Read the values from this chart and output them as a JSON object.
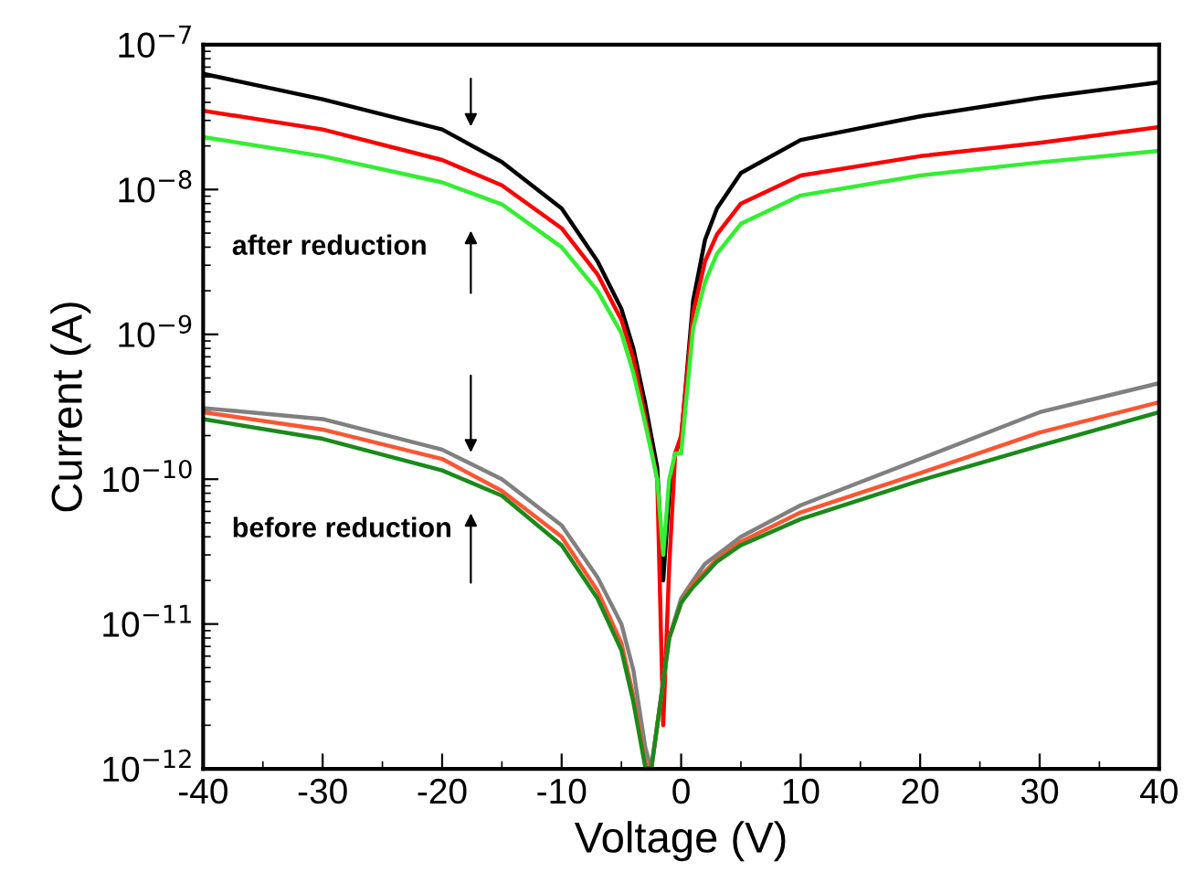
{
  "chart_data": {
    "type": "line",
    "xlabel": "Voltage (V)",
    "ylabel": "Current (A)",
    "log": "y",
    "xlim": [
      -40,
      40
    ],
    "xticks": [
      -40,
      -30,
      -20,
      -10,
      0,
      10,
      20,
      30,
      40
    ],
    "ylim": [
      1e-12,
      1e-07
    ],
    "yticks": [
      {
        "value": 1e-12,
        "label": "10$^{−12}$"
      },
      {
        "value": 1e-11,
        "label": "10$^{−11}$"
      },
      {
        "value": 1e-10,
        "label": "10$^{−10}$"
      },
      {
        "value": 1e-09,
        "label": "10$^{−9}$"
      },
      {
        "value": 1e-08,
        "label": "10$^{−8}$"
      },
      {
        "value": 1e-07,
        "label": "10$^{−7}$"
      }
    ],
    "grid": false,
    "legend": false,
    "marker": "none",
    "line_style": "solid",
    "x": [
      -40,
      -30,
      -20,
      -15,
      -10,
      -7,
      -5,
      -4,
      -3,
      -2,
      -1.5,
      -1,
      -0.5,
      0,
      1,
      2,
      3,
      5,
      10,
      20,
      30,
      40
    ],
    "series": [
      {
        "color": "#000000",
        "values": [
          6.3e-08,
          4.2e-08,
          2.6e-08,
          1.55e-08,
          7.4e-09,
          3.2e-09,
          1.5e-09,
          8e-10,
          3.3e-10,
          1.2e-10,
          2e-11,
          8e-11,
          1.5e-10,
          1.9e-10,
          1.7e-09,
          4.5e-09,
          7.4e-09,
          1.3e-08,
          2.2e-08,
          3.2e-08,
          4.3e-08,
          5.5e-08
        ]
      },
      {
        "color": "#ff0000",
        "values": [
          3.5e-08,
          2.6e-08,
          1.6e-08,
          1.07e-08,
          5.4e-09,
          2.6e-09,
          1.26e-09,
          6.8e-10,
          2.7e-10,
          1e-10,
          2e-12,
          2.5e-11,
          1.5e-10,
          2e-10,
          1.4e-09,
          3.2e-09,
          4.9e-09,
          8e-09,
          1.25e-08,
          1.7e-08,
          2.1e-08,
          2.7e-08
        ]
      },
      {
        "color": "#33ee33",
        "values": [
          2.3e-08,
          1.7e-08,
          1.12e-08,
          7.9e-09,
          4e-09,
          2e-09,
          1.02e-09,
          5.4e-10,
          2.4e-10,
          1e-10,
          3e-11,
          1e-10,
          1.5e-10,
          1.5e-10,
          1.1e-09,
          2.3e-09,
          3.6e-09,
          5.8e-09,
          9.1e-09,
          1.25e-08,
          1.54e-08,
          1.85e-08
        ]
      },
      {
        "color": "#808080",
        "x": [
          -40,
          -30,
          -20,
          -15,
          -10,
          -7,
          -5,
          -4,
          -3,
          -2.5,
          -2,
          -1.5,
          -1,
          0,
          1,
          2,
          3,
          5,
          10,
          20,
          30,
          40
        ],
        "values": [
          3.1e-10,
          2.6e-10,
          1.6e-10,
          1e-10,
          4.8e-11,
          2.1e-11,
          1e-11,
          4.8e-12,
          1.4e-12,
          1e-12,
          2e-12,
          4e-12,
          8e-12,
          1.5e-11,
          2e-11,
          2.6e-11,
          3e-11,
          4e-11,
          6.6e-11,
          1.38e-10,
          2.9e-10,
          4.6e-10
        ]
      },
      {
        "color": "#ff5533",
        "x": [
          -40,
          -30,
          -20,
          -15,
          -10,
          -7,
          -5,
          -4,
          -3,
          -2.5,
          -2,
          -1.5,
          -1,
          0,
          1,
          2,
          3,
          5,
          10,
          20,
          30,
          40
        ],
        "values": [
          2.9e-10,
          2.2e-10,
          1.38e-10,
          8.3e-11,
          4e-11,
          1.7e-11,
          7.4e-12,
          3.2e-12,
          1.1e-12,
          1e-12,
          2e-12,
          4e-12,
          8e-12,
          1.4e-11,
          1.9e-11,
          2.3e-11,
          2.8e-11,
          3.7e-11,
          5.9e-11,
          1.1e-10,
          2.1e-10,
          3.4e-10
        ]
      },
      {
        "color": "#1a8a1a",
        "x": [
          -40,
          -30,
          -20,
          -15,
          -10,
          -7,
          -5,
          -4,
          -3,
          -2.5,
          -2,
          -1.5,
          -1,
          0,
          1,
          2,
          3,
          5,
          10,
          20,
          30,
          40
        ],
        "values": [
          2.6e-10,
          1.9e-10,
          1.15e-10,
          7.7e-11,
          3.5e-11,
          1.5e-11,
          6.6e-12,
          2.9e-12,
          1.02e-12,
          1e-12,
          2e-12,
          4e-12,
          8e-12,
          1.4e-11,
          1.8e-11,
          2.2e-11,
          2.7e-11,
          3.5e-11,
          5.3e-11,
          9.8e-11,
          1.7e-10,
          2.9e-10
        ]
      }
    ],
    "annotations": [
      "after reduction",
      "before reduction"
    ]
  }
}
